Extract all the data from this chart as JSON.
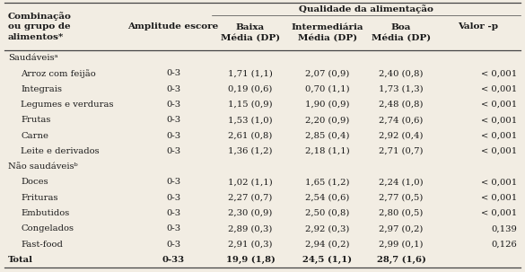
{
  "span_header": "Qualidade da alimentação",
  "col0_header": "Combinação\nou grupo de\nalimentos*",
  "col1_header": "Amplitude escore",
  "col2_header": "Baixa\nMédia (DP)",
  "col3_header": "Intermediária\nMédia (DP)",
  "col4_header": "Boa\nMédia (DP)",
  "col5_header": "Valor -p",
  "rows": [
    {
      "label": "Saudáveisᵃ",
      "indent": false,
      "bold": false,
      "amplitude": "",
      "baixa": "",
      "intermediaria": "",
      "boa": "",
      "valor_p": ""
    },
    {
      "label": "Arroz com feijão",
      "indent": true,
      "bold": false,
      "amplitude": "0-3",
      "baixa": "1,71 (1,1)",
      "intermediaria": "2,07 (0,9)",
      "boa": "2,40 (0,8)",
      "valor_p": "< 0,001"
    },
    {
      "label": "Integrais",
      "indent": true,
      "bold": false,
      "amplitude": "0-3",
      "baixa": "0,19 (0,6)",
      "intermediaria": "0,70 (1,1)",
      "boa": "1,73 (1,3)",
      "valor_p": "< 0,001"
    },
    {
      "label": "Legumes e verduras",
      "indent": true,
      "bold": false,
      "amplitude": "0-3",
      "baixa": "1,15 (0,9)",
      "intermediaria": "1,90 (0,9)",
      "boa": "2,48 (0,8)",
      "valor_p": "< 0,001"
    },
    {
      "label": "Frutas",
      "indent": true,
      "bold": false,
      "amplitude": "0-3",
      "baixa": "1,53 (1,0)",
      "intermediaria": "2,20 (0,9)",
      "boa": "2,74 (0,6)",
      "valor_p": "< 0,001"
    },
    {
      "label": "Carne",
      "indent": true,
      "bold": false,
      "amplitude": "0-3",
      "baixa": "2,61 (0,8)",
      "intermediaria": "2,85 (0,4)",
      "boa": "2,92 (0,4)",
      "valor_p": "< 0,001"
    },
    {
      "label": "Leite e derivados",
      "indent": true,
      "bold": false,
      "amplitude": "0-3",
      "baixa": "1,36 (1,2)",
      "intermediaria": "2,18 (1,1)",
      "boa": "2,71 (0,7)",
      "valor_p": "< 0,001"
    },
    {
      "label": "Não saudáveisᵇ",
      "indent": false,
      "bold": false,
      "amplitude": "",
      "baixa": "",
      "intermediaria": "",
      "boa": "",
      "valor_p": ""
    },
    {
      "label": "Doces",
      "indent": true,
      "bold": false,
      "amplitude": "0-3",
      "baixa": "1,02 (1,1)",
      "intermediaria": "1,65 (1,2)",
      "boa": "2,24 (1,0)",
      "valor_p": "< 0,001"
    },
    {
      "label": "Frituras",
      "indent": true,
      "bold": false,
      "amplitude": "0-3",
      "baixa": "2,27 (0,7)",
      "intermediaria": "2,54 (0,6)",
      "boa": "2,77 (0,5)",
      "valor_p": "< 0,001"
    },
    {
      "label": "Embutidos",
      "indent": true,
      "bold": false,
      "amplitude": "0-3",
      "baixa": "2,30 (0,9)",
      "intermediaria": "2,50 (0,8)",
      "boa": "2,80 (0,5)",
      "valor_p": "< 0,001"
    },
    {
      "label": "Congelados",
      "indent": true,
      "bold": false,
      "amplitude": "0-3",
      "baixa": "2,89 (0,3)",
      "intermediaria": "2,92 (0,3)",
      "boa": "2,97 (0,2)",
      "valor_p": "0,139"
    },
    {
      "label": "Fast-food",
      "indent": true,
      "bold": false,
      "amplitude": "0-3",
      "baixa": "2,91 (0,3)",
      "intermediaria": "2,94 (0,2)",
      "boa": "2,99 (0,1)",
      "valor_p": "0,126"
    },
    {
      "label": "Total",
      "indent": false,
      "bold": true,
      "amplitude": "0-33",
      "baixa": "19,9 (1,8)",
      "intermediaria": "24,5 (1,1)",
      "boa": "28,7 (1,6)",
      "valor_p": ""
    }
  ],
  "bg_color": "#f2ede3",
  "text_color": "#1a1a1a",
  "line_color": "#444444",
  "font_size": 7.2,
  "header_font_size": 7.5
}
